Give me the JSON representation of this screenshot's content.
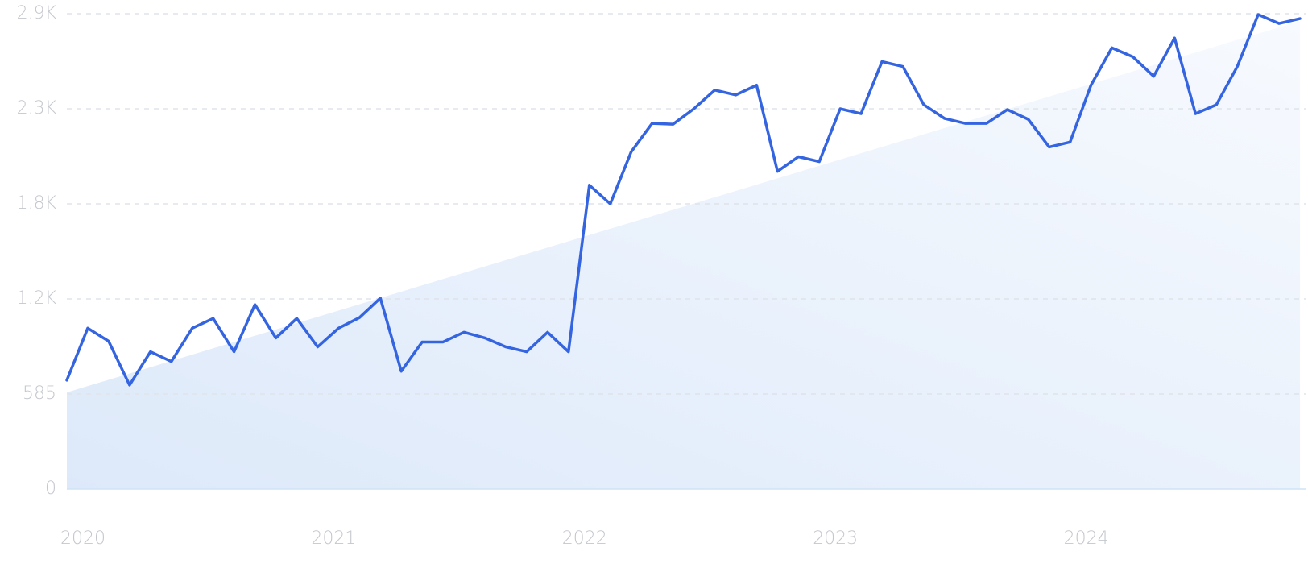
{
  "chart_data": {
    "type": "line",
    "categories": [
      "2020",
      null,
      null,
      null,
      null,
      null,
      null,
      null,
      null,
      null,
      null,
      null,
      "2021",
      null,
      null,
      null,
      null,
      null,
      null,
      null,
      null,
      null,
      null,
      null,
      "2022",
      null,
      null,
      null,
      null,
      null,
      null,
      null,
      null,
      null,
      null,
      null,
      "2023",
      null,
      null,
      null,
      null,
      null,
      null,
      null,
      null,
      null,
      null,
      null,
      "2024",
      null,
      null,
      null,
      null,
      null,
      null,
      null,
      null,
      null,
      null,
      null
    ],
    "series": [
      {
        "color": "#3464e0",
        "values": [
          670,
          990,
          910,
          640,
          845,
          785,
          990,
          1050,
          845,
          1135,
          930,
          1050,
          875,
          990,
          1055,
          1175,
          725,
          905,
          905,
          965,
          930,
          875,
          845,
          965,
          845,
          1870,
          1755,
          2075,
          2250,
          2245,
          2340,
          2455,
          2425,
          2485,
          1955,
          2045,
          2015,
          2340,
          2310,
          2630,
          2600,
          2365,
          2280,
          2250,
          2250,
          2335,
          2275,
          2105,
          2135,
          2485,
          2715,
          2660,
          2540,
          2775,
          2310,
          2365,
          2600,
          2920,
          2865,
          2895
        ]
      }
    ],
    "trend": [
      595,
      2880
    ],
    "ylim": [
      0,
      2925
    ],
    "yticks": [
      0,
      585,
      {
        "value": 1170,
        "label": "1.2K"
      },
      {
        "value": 1755,
        "label": "1.8K"
      },
      {
        "value": 2340,
        "label": "2.3K"
      },
      {
        "value": 2925,
        "label": "2.9K"
      }
    ],
    "grid": true
  }
}
